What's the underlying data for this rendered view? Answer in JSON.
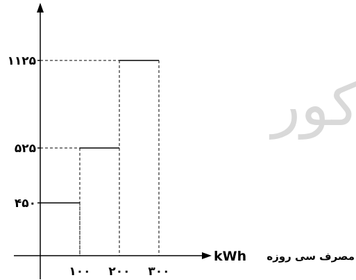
{
  "chart_data": {
    "type": "step",
    "title": "",
    "xlabel_fa": "مصرف سی روزه",
    "xlabel_unit": "kWh",
    "ylabel": "",
    "x_ticks": [
      "۱۰۰",
      "۲۰۰",
      "۳۰۰"
    ],
    "y_ticks": [
      "۴۵۰",
      "۵۲۵",
      "۱۱۲۵"
    ],
    "xlim": [
      0,
      350
    ],
    "ylim": [
      0,
      1350
    ],
    "segments": [
      {
        "x_start": 0,
        "x_end": 100,
        "y": 450
      },
      {
        "x_start": 100,
        "x_end": 200,
        "y": 525
      },
      {
        "x_start": 200,
        "x_end": 300,
        "y": 1125
      }
    ],
    "grid": false,
    "legend": "none"
  },
  "watermark": "کور",
  "colors": {
    "line": "#000000",
    "watermark": "#d9d9d9"
  }
}
